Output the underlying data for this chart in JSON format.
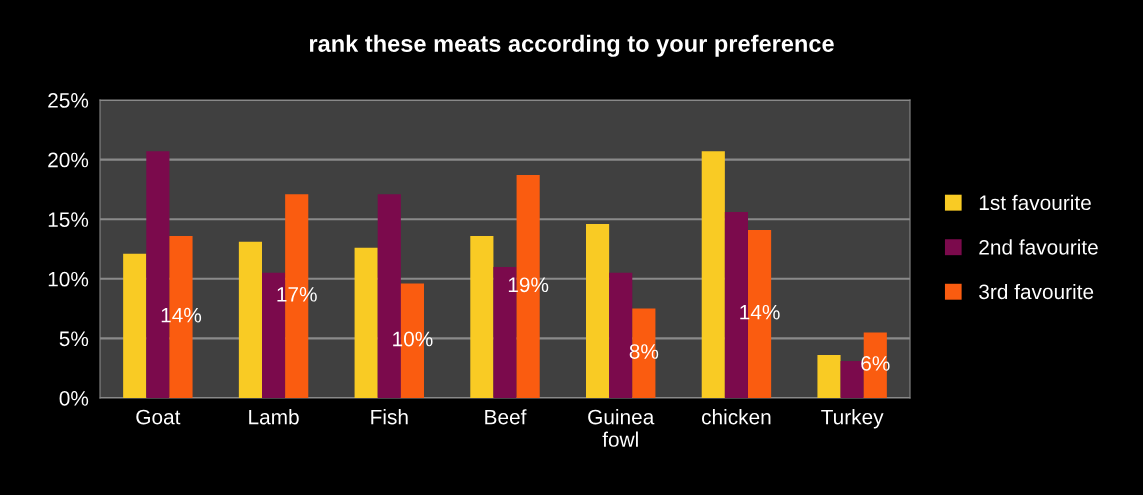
{
  "chart_data": {
    "type": "bar",
    "title": "rank these meats according to your preference",
    "categories": [
      "Goat",
      "Lamb",
      "Fish",
      "Beef",
      "Guinea\nfowl",
      "chicken",
      "Turkey"
    ],
    "series": [
      {
        "name": "1st favourite",
        "color": "#f9cb24",
        "values": [
          12.1,
          13.1,
          12.6,
          13.6,
          14.6,
          20.7,
          3.6
        ]
      },
      {
        "name": "2nd favourite",
        "color": "#7b0a4c",
        "values": [
          20.7,
          10.5,
          17.1,
          11.0,
          10.5,
          15.6,
          3.1
        ]
      },
      {
        "name": "3rd favourite",
        "color": "#fa5c10",
        "values": [
          13.6,
          17.1,
          9.6,
          18.7,
          7.5,
          14.1,
          5.5
        ],
        "value_labels": [
          "14%",
          "17%",
          "10%",
          "19%",
          "8%",
          "14%",
          "6%"
        ]
      }
    ],
    "ylim": [
      0,
      25
    ],
    "yticks": [
      {
        "value": 0,
        "label": "0%"
      },
      {
        "value": 5,
        "label": "5%"
      },
      {
        "value": 10,
        "label": "10%"
      },
      {
        "value": 15,
        "label": "15%"
      },
      {
        "value": 20,
        "label": "20%"
      },
      {
        "value": 25,
        "label": "25%"
      }
    ],
    "grid": "y",
    "legend": "right"
  }
}
